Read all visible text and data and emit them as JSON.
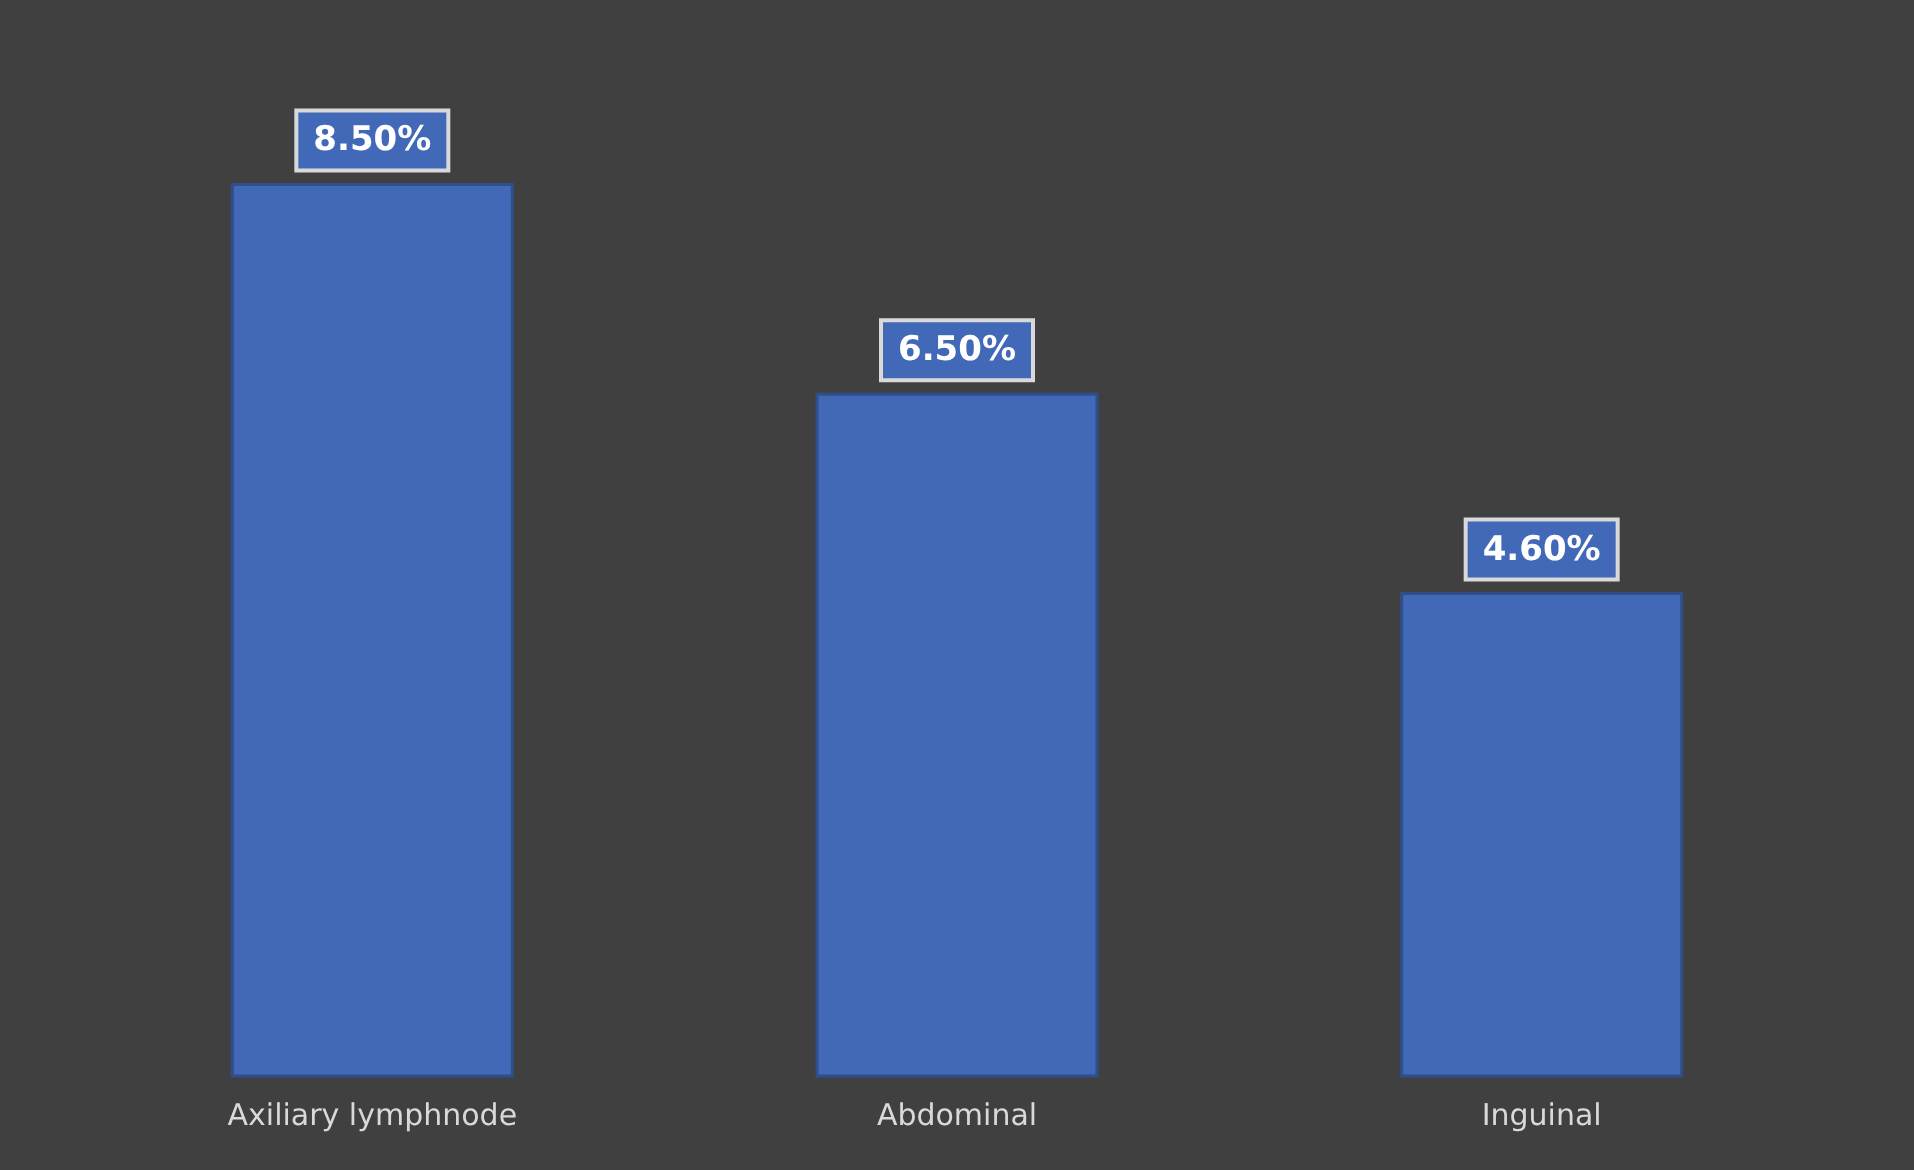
{
  "chart_data": {
    "type": "bar",
    "categories": [
      "Axiliary lymphnode",
      "Abdominal",
      "Inguinal"
    ],
    "values": [
      8.5,
      6.5,
      4.6
    ],
    "value_labels": [
      "8.50%",
      "6.50%",
      "4.60%"
    ],
    "color": "#4169b8"
  }
}
